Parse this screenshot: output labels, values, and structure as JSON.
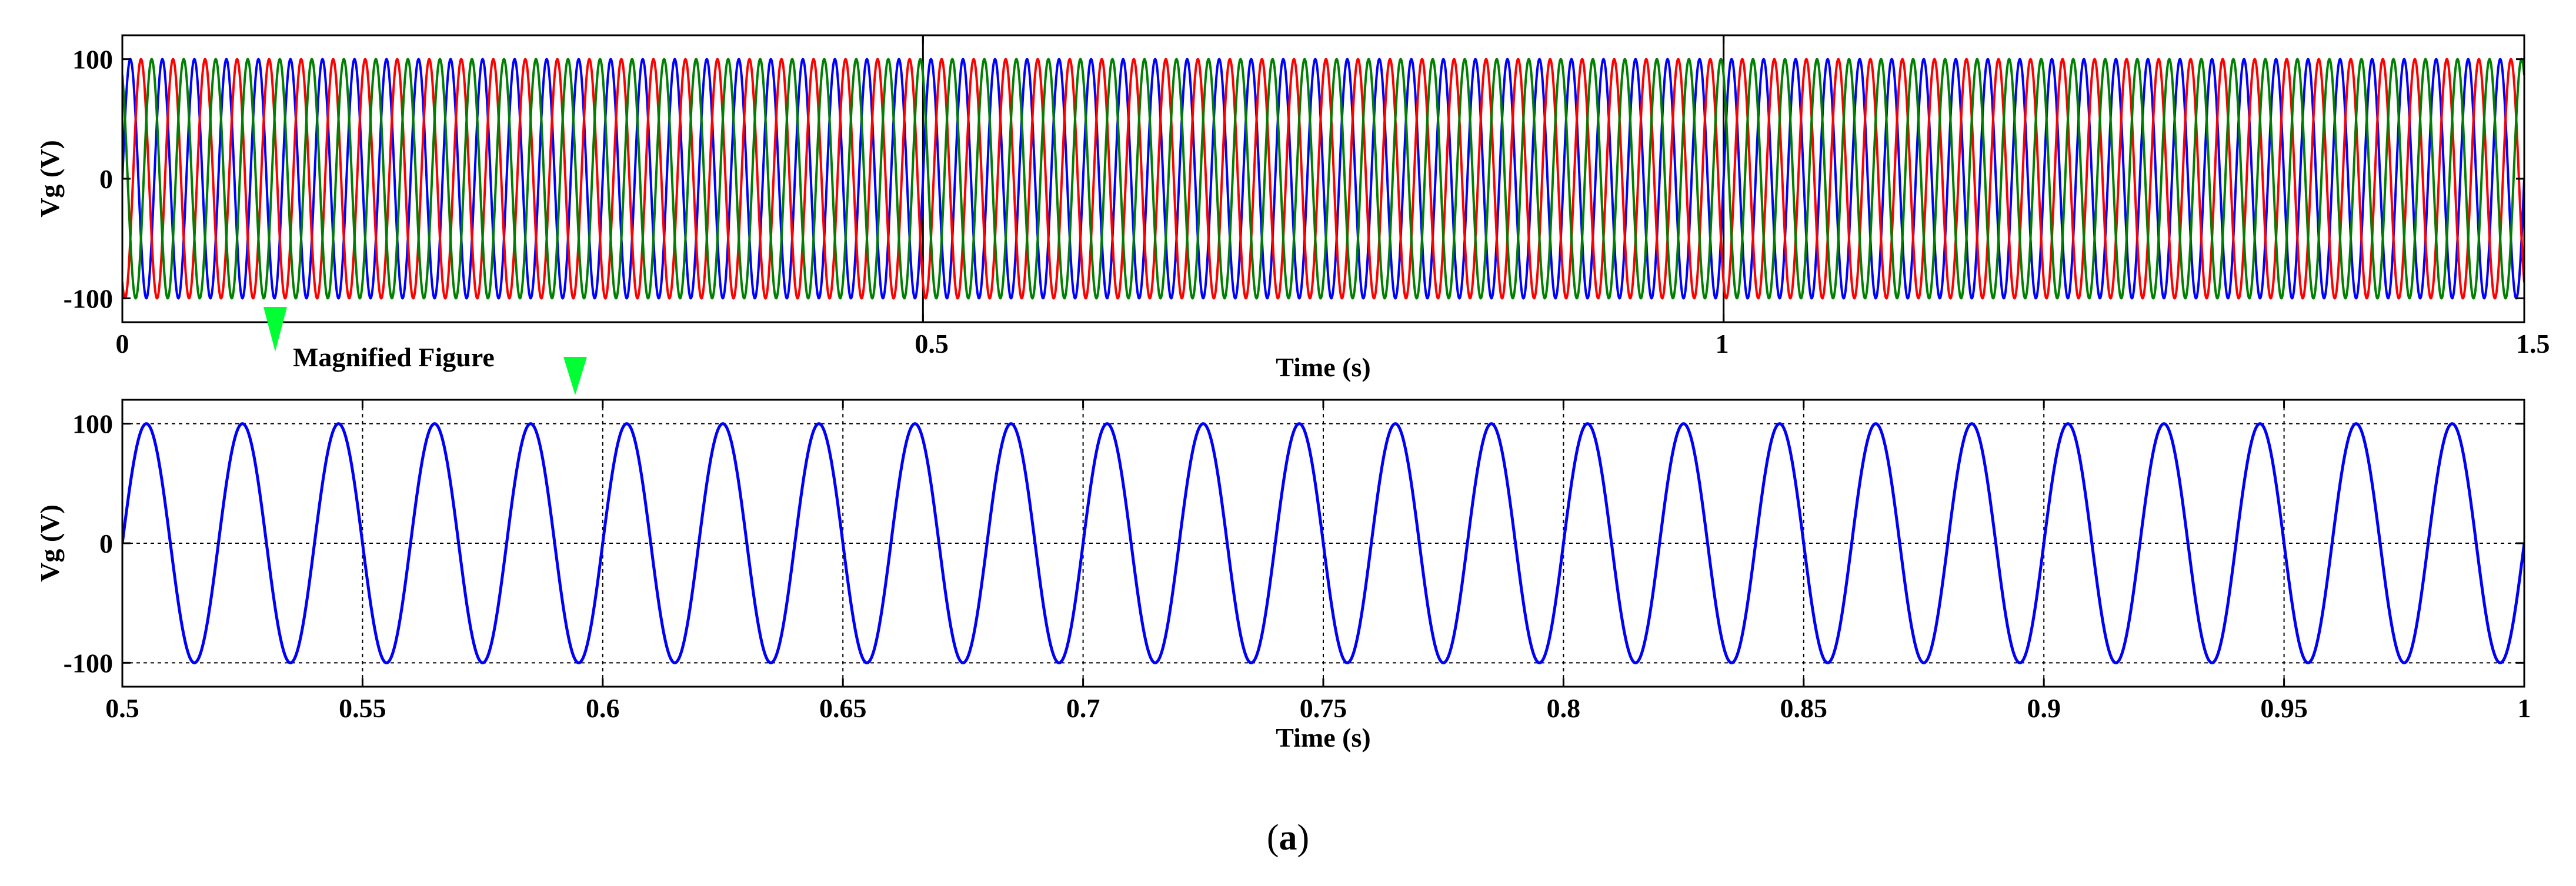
{
  "figure": {
    "caption_prefix": "(",
    "caption_letter": "a",
    "caption_suffix": ")",
    "annotation": "Magnified Figure",
    "annotation_color": "#00ff33"
  },
  "chart_data": [
    {
      "type": "line",
      "title": "",
      "xlabel": "Time (s)",
      "ylabel": "Vg (V)",
      "xlim": [
        0,
        1.5
      ],
      "ylim": [
        -120,
        120
      ],
      "xticks": [
        0,
        0.5,
        1,
        1.5
      ],
      "xtick_labels": [
        "0",
        "0.5",
        "1",
        "1.5"
      ],
      "yticks": [
        -100,
        0,
        100
      ],
      "ytick_labels": [
        "-100",
        "0",
        "100"
      ],
      "grid": true,
      "legend": "none",
      "waveform": {
        "shape": "sine",
        "frequency_hz": 50,
        "amplitude": 100
      },
      "series": [
        {
          "phase_deg": 0,
          "color": "#0000ff"
        },
        {
          "phase_deg": -120,
          "color": "#ff0000"
        },
        {
          "phase_deg": 120,
          "color": "#008000"
        }
      ]
    },
    {
      "type": "line",
      "title": "",
      "xlabel": "Time (s)",
      "ylabel": "Vg (V)",
      "xlim": [
        0.5,
        1
      ],
      "ylim": [
        -120,
        120
      ],
      "xticks": [
        0.5,
        0.55,
        0.6,
        0.65,
        0.7,
        0.75,
        0.8,
        0.85,
        0.9,
        0.95,
        1
      ],
      "xtick_labels": [
        "0.5",
        "0.55",
        "0.6",
        "0.65",
        "0.7",
        "0.75",
        "0.8",
        "0.85",
        "0.9",
        "0.95",
        "1"
      ],
      "yticks": [
        -100,
        0,
        100
      ],
      "ytick_labels": [
        "-100",
        "0",
        "100"
      ],
      "grid": true,
      "legend": "none",
      "waveform": {
        "shape": "sine",
        "frequency_hz": 50,
        "amplitude": 100
      },
      "series": [
        {
          "phase_deg": 0,
          "color": "#0000ff"
        }
      ]
    }
  ]
}
